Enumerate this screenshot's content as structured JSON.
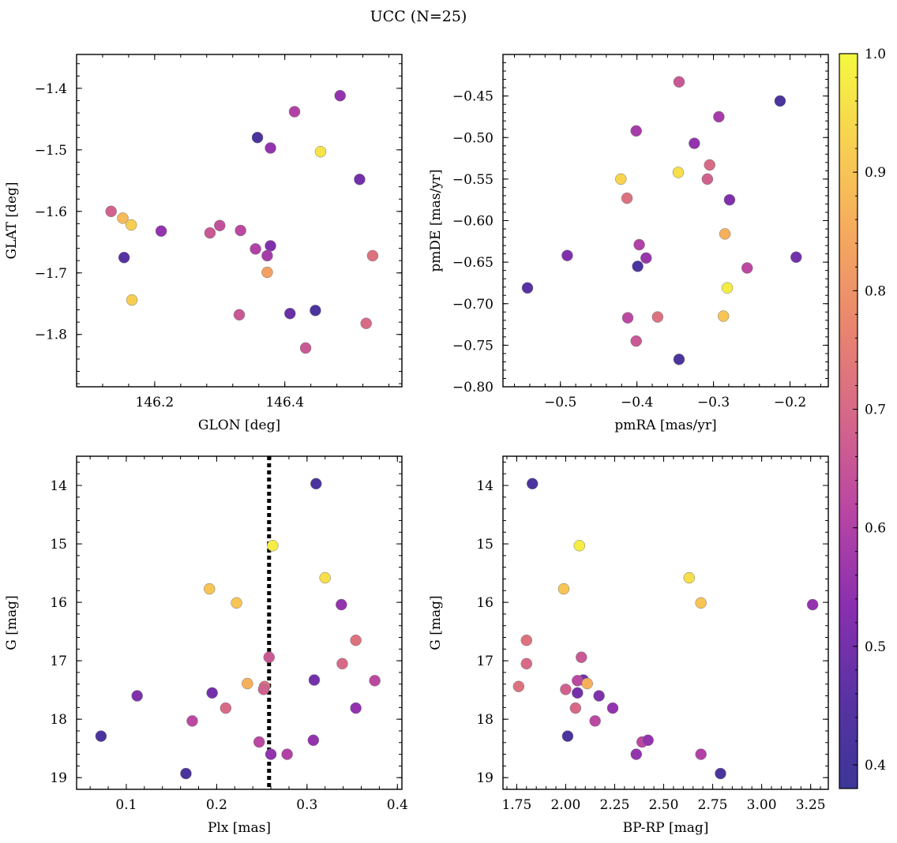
{
  "figure": {
    "title": "UCC (N=25)"
  },
  "colorbar": {
    "range": [
      0.38,
      1.0
    ],
    "ticks": [
      0.4,
      0.5,
      0.6,
      0.7,
      0.8,
      0.9,
      1.0
    ],
    "tick_labels": [
      "0.4",
      "0.5",
      "0.6",
      "0.7",
      "0.8",
      "0.9",
      "1.0"
    ],
    "colormap": "plasma (clipped)",
    "colormap_stops": [
      "#3c3697",
      "#5a32a3",
      "#8a2fb0",
      "#b845a4",
      "#d4668a",
      "#e8846f",
      "#f5a85f",
      "#f8cf52",
      "#f4f83f"
    ]
  },
  "chart_data": [
    {
      "type": "scatter",
      "title": "",
      "xlabel": "GLON [deg]",
      "ylabel": "GLAT [deg]",
      "xlim": [
        146.08,
        146.58
      ],
      "ylim": [
        -1.885,
        -1.345
      ],
      "y_inverted": false,
      "xticks": [
        146.2,
        146.4
      ],
      "xtick_labels": [
        "146.2",
        "146.4"
      ],
      "yticks": [
        -1.4,
        -1.5,
        -1.6,
        -1.7,
        -1.8
      ],
      "ytick_labels": [
        "−1.4",
        "−1.5",
        "−1.6",
        "−1.7",
        "−1.8"
      ],
      "x": [
        146.485,
        146.415,
        146.358,
        146.378,
        146.455,
        146.515,
        146.133,
        146.151,
        146.164,
        146.21,
        146.3,
        146.285,
        146.332,
        146.355,
        146.378,
        146.373,
        146.153,
        146.165,
        146.373,
        146.535,
        146.33,
        146.408,
        146.447,
        146.525,
        146.432
      ],
      "y": [
        -1.412,
        -1.438,
        -1.48,
        -1.497,
        -1.503,
        -1.548,
        -1.6,
        -1.611,
        -1.622,
        -1.632,
        -1.623,
        -1.635,
        -1.631,
        -1.661,
        -1.656,
        -1.672,
        -1.675,
        -1.744,
        -1.699,
        -1.672,
        -1.768,
        -1.766,
        -1.761,
        -1.782,
        -1.822
      ],
      "c": [
        0.55,
        0.6,
        0.42,
        0.55,
        0.96,
        0.5,
        0.68,
        0.88,
        0.92,
        0.55,
        0.64,
        0.66,
        0.62,
        0.6,
        0.52,
        0.58,
        0.45,
        0.92,
        0.83,
        0.72,
        0.66,
        0.48,
        0.42,
        0.7,
        0.66
      ]
    },
    {
      "type": "scatter",
      "title": "",
      "xlabel": "pmRA [mas/yr]",
      "ylabel": "pmDE [mas/yr]",
      "xlim": [
        -0.575,
        -0.15
      ],
      "ylim": [
        -0.8,
        -0.4
      ],
      "y_inverted": false,
      "xticks": [
        -0.5,
        -0.4,
        -0.3,
        -0.2
      ],
      "xtick_labels": [
        "−0.5",
        "−0.4",
        "−0.3",
        "−0.2"
      ],
      "yticks": [
        -0.45,
        -0.5,
        -0.55,
        -0.6,
        -0.65,
        -0.7,
        -0.75,
        -0.8
      ],
      "ytick_labels": [
        "−0.45",
        "−0.50",
        "−0.55",
        "−0.60",
        "−0.65",
        "−0.70",
        "−0.75",
        "−0.80"
      ],
      "x": [
        -0.345,
        -0.213,
        -0.401,
        -0.293,
        -0.325,
        -0.305,
        -0.308,
        -0.346,
        -0.421,
        -0.413,
        -0.279,
        -0.397,
        -0.388,
        -0.285,
        -0.491,
        -0.256,
        -0.192,
        -0.399,
        -0.543,
        -0.282,
        -0.373,
        -0.412,
        -0.287,
        -0.401,
        -0.345
      ],
      "y": [
        -0.433,
        -0.456,
        -0.492,
        -0.475,
        -0.507,
        -0.533,
        -0.55,
        -0.542,
        -0.55,
        -0.573,
        -0.575,
        -0.629,
        -0.645,
        -0.616,
        -0.642,
        -0.657,
        -0.644,
        -0.655,
        -0.681,
        -0.681,
        -0.716,
        -0.717,
        -0.715,
        -0.745,
        -0.767
      ],
      "c": [
        0.66,
        0.42,
        0.58,
        0.58,
        0.55,
        0.7,
        0.68,
        0.95,
        0.93,
        0.72,
        0.52,
        0.6,
        0.56,
        0.86,
        0.52,
        0.62,
        0.5,
        0.42,
        0.45,
        0.98,
        0.72,
        0.62,
        0.9,
        0.66,
        0.42
      ]
    },
    {
      "type": "scatter",
      "title": "",
      "xlabel": "Plx [mas]",
      "ylabel": "G [mag]",
      "xlim": [
        0.045,
        0.405
      ],
      "ylim": [
        13.5,
        19.2
      ],
      "y_inverted": true,
      "xticks": [
        0.1,
        0.2,
        0.3,
        0.4
      ],
      "xtick_labels": [
        "0.1",
        "0.2",
        "0.3",
        "0.4"
      ],
      "yticks": [
        14,
        15,
        16,
        17,
        18,
        19
      ],
      "ytick_labels": [
        "14",
        "15",
        "16",
        "17",
        "18",
        "19"
      ],
      "vline": 0.258,
      "x": [
        0.31,
        0.262,
        0.192,
        0.32,
        0.222,
        0.338,
        0.354,
        0.258,
        0.339,
        0.308,
        0.375,
        0.234,
        0.253,
        0.252,
        0.112,
        0.195,
        0.21,
        0.173,
        0.354,
        0.072,
        0.247,
        0.307,
        0.26,
        0.278,
        0.166
      ],
      "y": [
        13.97,
        15.03,
        15.77,
        15.58,
        16.01,
        16.04,
        16.65,
        16.94,
        17.05,
        17.33,
        17.34,
        17.39,
        17.44,
        17.49,
        17.6,
        17.55,
        17.81,
        18.03,
        17.81,
        18.29,
        18.39,
        18.36,
        18.6,
        18.6,
        18.93
      ],
      "c": [
        0.42,
        0.98,
        0.9,
        0.95,
        0.9,
        0.55,
        0.72,
        0.66,
        0.7,
        0.5,
        0.62,
        0.86,
        0.72,
        0.68,
        0.52,
        0.5,
        0.7,
        0.62,
        0.55,
        0.42,
        0.62,
        0.55,
        0.55,
        0.6,
        0.42
      ]
    },
    {
      "type": "scatter",
      "title": "",
      "xlabel": "BP-RP [mag]",
      "ylabel": "G [mag]",
      "xlim": [
        1.68,
        3.34
      ],
      "ylim": [
        13.5,
        19.2
      ],
      "y_inverted": true,
      "xticks": [
        1.75,
        2.0,
        2.25,
        2.5,
        2.75,
        3.0,
        3.25
      ],
      "xtick_labels": [
        "1.75",
        "2.00",
        "2.25",
        "2.50",
        "2.75",
        "3.00",
        "3.25"
      ],
      "yticks": [
        14,
        15,
        16,
        17,
        18,
        19
      ],
      "ytick_labels": [
        "14",
        "15",
        "16",
        "17",
        "18",
        "19"
      ],
      "x": [
        1.83,
        2.07,
        1.99,
        2.63,
        2.69,
        3.26,
        1.8,
        2.08,
        1.8,
        2.09,
        2.06,
        2.11,
        1.76,
        2.0,
        2.17,
        2.06,
        2.05,
        2.24,
        2.15,
        2.01,
        2.39,
        2.42,
        2.36,
        2.69,
        2.79
      ],
      "y": [
        13.97,
        15.03,
        15.77,
        15.58,
        16.01,
        16.04,
        16.65,
        16.94,
        17.05,
        17.33,
        17.34,
        17.39,
        17.44,
        17.49,
        17.6,
        17.55,
        17.81,
        17.81,
        18.03,
        18.29,
        18.39,
        18.36,
        18.6,
        18.6,
        18.93
      ],
      "c": [
        0.42,
        0.98,
        0.9,
        0.95,
        0.9,
        0.55,
        0.72,
        0.66,
        0.7,
        0.5,
        0.62,
        0.86,
        0.72,
        0.68,
        0.52,
        0.5,
        0.7,
        0.55,
        0.62,
        0.42,
        0.62,
        0.55,
        0.55,
        0.6,
        0.42
      ]
    }
  ]
}
